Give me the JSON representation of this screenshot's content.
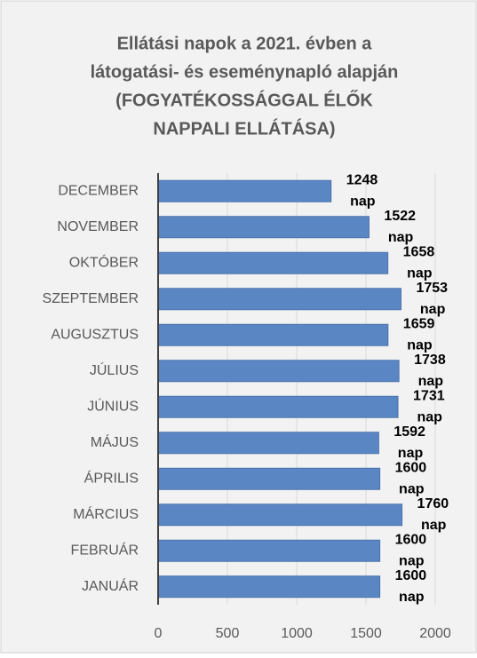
{
  "chart_data": {
    "type": "bar",
    "orientation": "horizontal",
    "title": [
      "Ellátási napok a 2021. évben a",
      "látogatási- és eseménynapló alapján",
      "(FOGYATÉKOSSÁGGAL ÉLŐK",
      "NAPPALI ELLÁTÁSA)"
    ],
    "categories": [
      "DECEMBER",
      "NOVEMBER",
      "OKTÓBER",
      "SZEPTEMBER",
      "AUGUSZTUS",
      "JÚLIUS",
      "JÚNIUS",
      "MÁJUS",
      "ÁPRILIS",
      "MÁRCIUS",
      "FEBRUÁR",
      "JANUÁR"
    ],
    "values": [
      1248,
      1522,
      1658,
      1753,
      1659,
      1738,
      1731,
      1592,
      1600,
      1760,
      1600,
      1600
    ],
    "value_labels": [
      "1248 nap",
      "1522 nap",
      "1658 nap",
      "1753 nap",
      "1659 nap",
      "1738 nap",
      "1731 nap",
      "1592 nap",
      "1600 nap",
      "1760 nap",
      "1600 nap",
      "1600 nap"
    ],
    "color": "#5a86c3",
    "xlim": [
      0,
      2000
    ],
    "xticks": [
      0,
      500,
      1000,
      1500,
      2000
    ],
    "grid": true
  }
}
